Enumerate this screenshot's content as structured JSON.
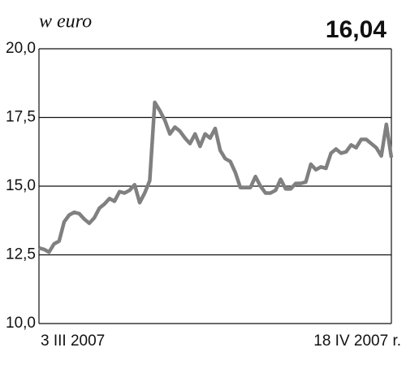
{
  "chart_data": {
    "type": "line",
    "title": "w euro",
    "annotation": "16,04",
    "categories": [
      "3 III 2007",
      null,
      null,
      null,
      null,
      null,
      null,
      null,
      null,
      null,
      null,
      null,
      null,
      null,
      null,
      null,
      null,
      null,
      null,
      null,
      null,
      null,
      null,
      null,
      null,
      null,
      null,
      null,
      null,
      null,
      null,
      null,
      null,
      null,
      null,
      null,
      null,
      null,
      null,
      null,
      null,
      null,
      null,
      null,
      null,
      null,
      null,
      null,
      null,
      null,
      null,
      null,
      null,
      null,
      null,
      null,
      null,
      null,
      null,
      null,
      null,
      null,
      null,
      null,
      null,
      null,
      null,
      null,
      null,
      null,
      "18 IV 2007 r."
    ],
    "series": [
      {
        "name": "w euro",
        "color": "#808080",
        "values": [
          12.75,
          12.7,
          12.6,
          12.9,
          13.0,
          13.7,
          13.95,
          14.05,
          14.0,
          13.8,
          13.65,
          13.85,
          14.2,
          14.35,
          14.55,
          14.45,
          14.8,
          14.75,
          14.85,
          15.05,
          14.4,
          14.75,
          15.2,
          18.05,
          17.75,
          17.4,
          16.9,
          17.15,
          17.0,
          16.75,
          16.55,
          16.9,
          16.45,
          16.9,
          16.75,
          17.1,
          16.3,
          16.0,
          15.9,
          15.5,
          14.95,
          14.95,
          14.95,
          15.35,
          15.0,
          14.75,
          14.75,
          14.85,
          15.25,
          14.9,
          14.9,
          15.1,
          15.1,
          15.15,
          15.8,
          15.6,
          15.7,
          15.65,
          16.2,
          16.35,
          16.2,
          16.25,
          16.5,
          16.4,
          16.7,
          16.7,
          16.55,
          16.4,
          16.1,
          17.25,
          16.04
        ]
      }
    ],
    "ylim": [
      10,
      20
    ],
    "yticks": [
      {
        "value": 10,
        "label": "10,0"
      },
      {
        "value": 12.5,
        "label": "12,5"
      },
      {
        "value": 15,
        "label": "15,0"
      },
      {
        "value": 17.5,
        "label": "17,5"
      },
      {
        "value": 20,
        "label": "20,0"
      }
    ],
    "grid": true
  }
}
